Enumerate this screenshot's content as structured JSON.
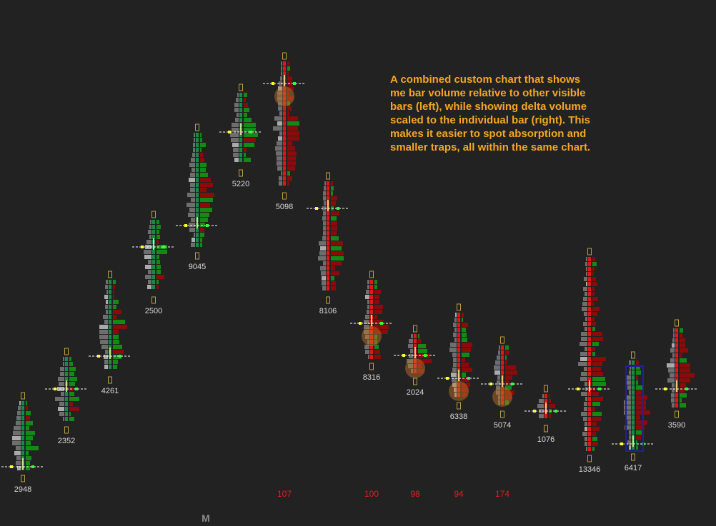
{
  "chart_data": {
    "type": "footprint",
    "annotation_lines": [
      "A combined custom chart that shows",
      "me bar volume relative to other visible",
      "bars (left), while showing delta volume",
      "scaled to the individual bar (right). This",
      "makes it easier to spot absorption and",
      "smaller traps, all within the same chart."
    ],
    "values": [
      2948,
      2352,
      4261,
      2500,
      9045,
      5220,
      5098,
      8106,
      8316,
      2024,
      6338,
      5074,
      1076,
      13346,
      6417,
      3590
    ],
    "signals": [
      107,
      100,
      98,
      94,
      174
    ],
    "session_label": "M"
  }
}
